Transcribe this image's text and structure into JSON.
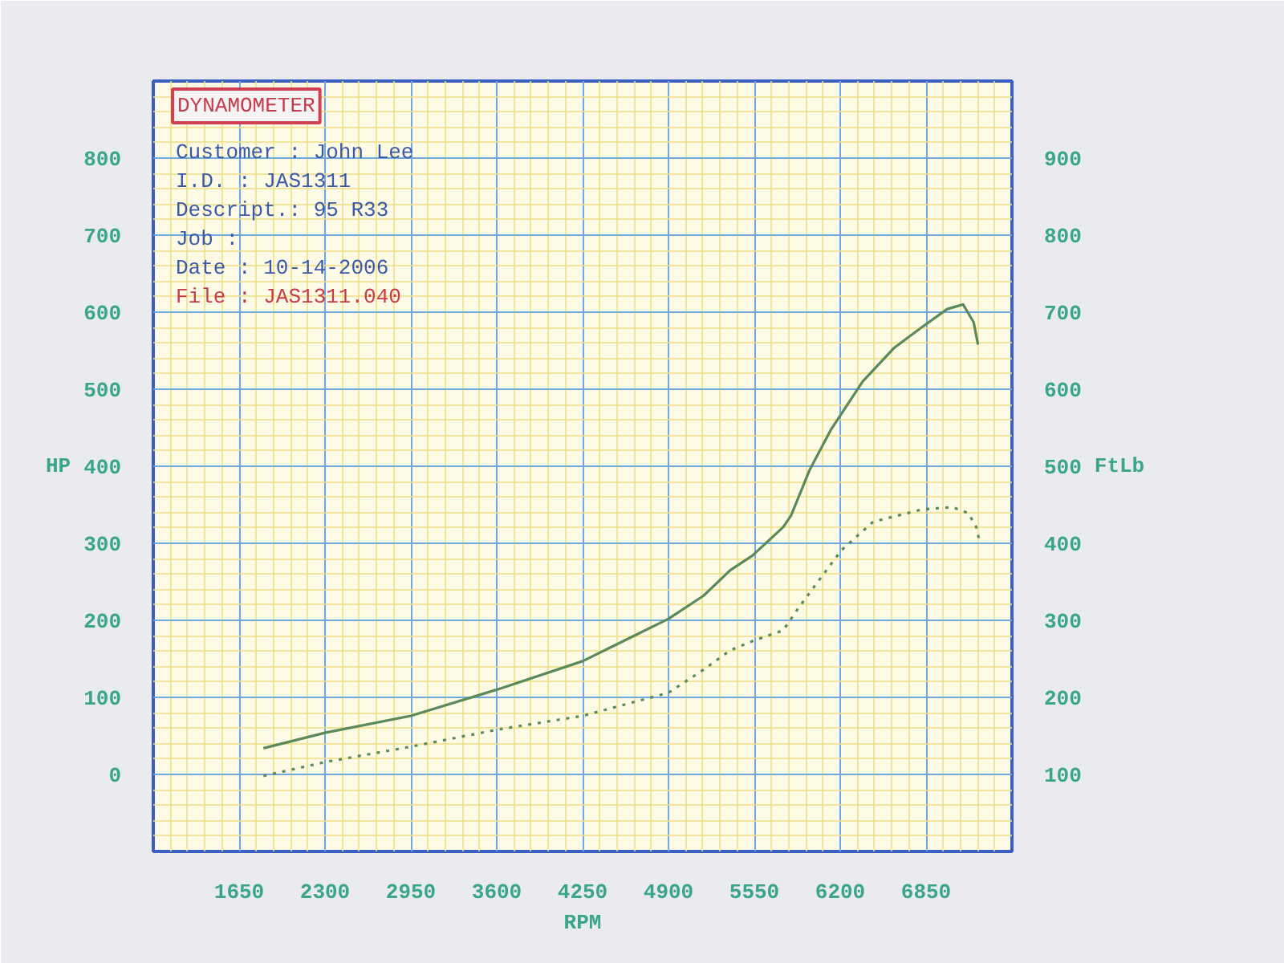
{
  "chart_data": {
    "type": "line",
    "title": "DYNAMOMETER",
    "xlabel": "RPM",
    "ylabel": "HP",
    "y2label": "FtLb",
    "annotations": [
      "Customer : John Lee",
      "I.D.     : JAS1311",
      "Descript.: 95 R33",
      "Job      :",
      "Date     : 10-14-2006",
      "File     : JAS1311.040"
    ],
    "xlim": [
      1000,
      7500
    ],
    "xticks": [
      1650,
      2300,
      2950,
      3600,
      4250,
      4900,
      5550,
      6200,
      6850
    ],
    "ylim": [
      -100,
      900
    ],
    "yticks": [
      0,
      100,
      200,
      300,
      400,
      500,
      600,
      700,
      800
    ],
    "y2lim": [
      0,
      1000
    ],
    "y2ticks": [
      100,
      200,
      300,
      400,
      500,
      600,
      700,
      800,
      900
    ],
    "grid": true,
    "marker": "none",
    "series": [
      {
        "color": "#5a8a5a",
        "line_style": "solid",
        "x": [
          1834,
          2300,
          2950,
          3600,
          4250,
          4900,
          5166,
          5367,
          5535,
          5768,
          5828,
          5968,
          6128,
          6370,
          6610,
          6822,
          7010,
          7130,
          7210,
          7243
        ],
        "values": [
          34,
          54,
          76,
          110,
          147,
          202,
          232,
          265,
          284,
          321,
          336,
          395,
          447,
          510,
          554,
          581,
          604,
          610,
          587,
          558
        ]
      },
      {
        "color": "#5a8a5a",
        "line_style": "dotted",
        "axis": "y2",
        "x": [
          1834,
          2300,
          2950,
          3600,
          4250,
          4900,
          5166,
          5367,
          5535,
          5768,
          5888,
          6048,
          6209,
          6450,
          6822,
          7050,
          7170,
          7230,
          7250
        ],
        "values": [
          98,
          116,
          136,
          158,
          176,
          206,
          236,
          261,
          273,
          287,
          317,
          354,
          391,
          428,
          444,
          447,
          439,
          421,
          406
        ]
      }
    ]
  }
}
